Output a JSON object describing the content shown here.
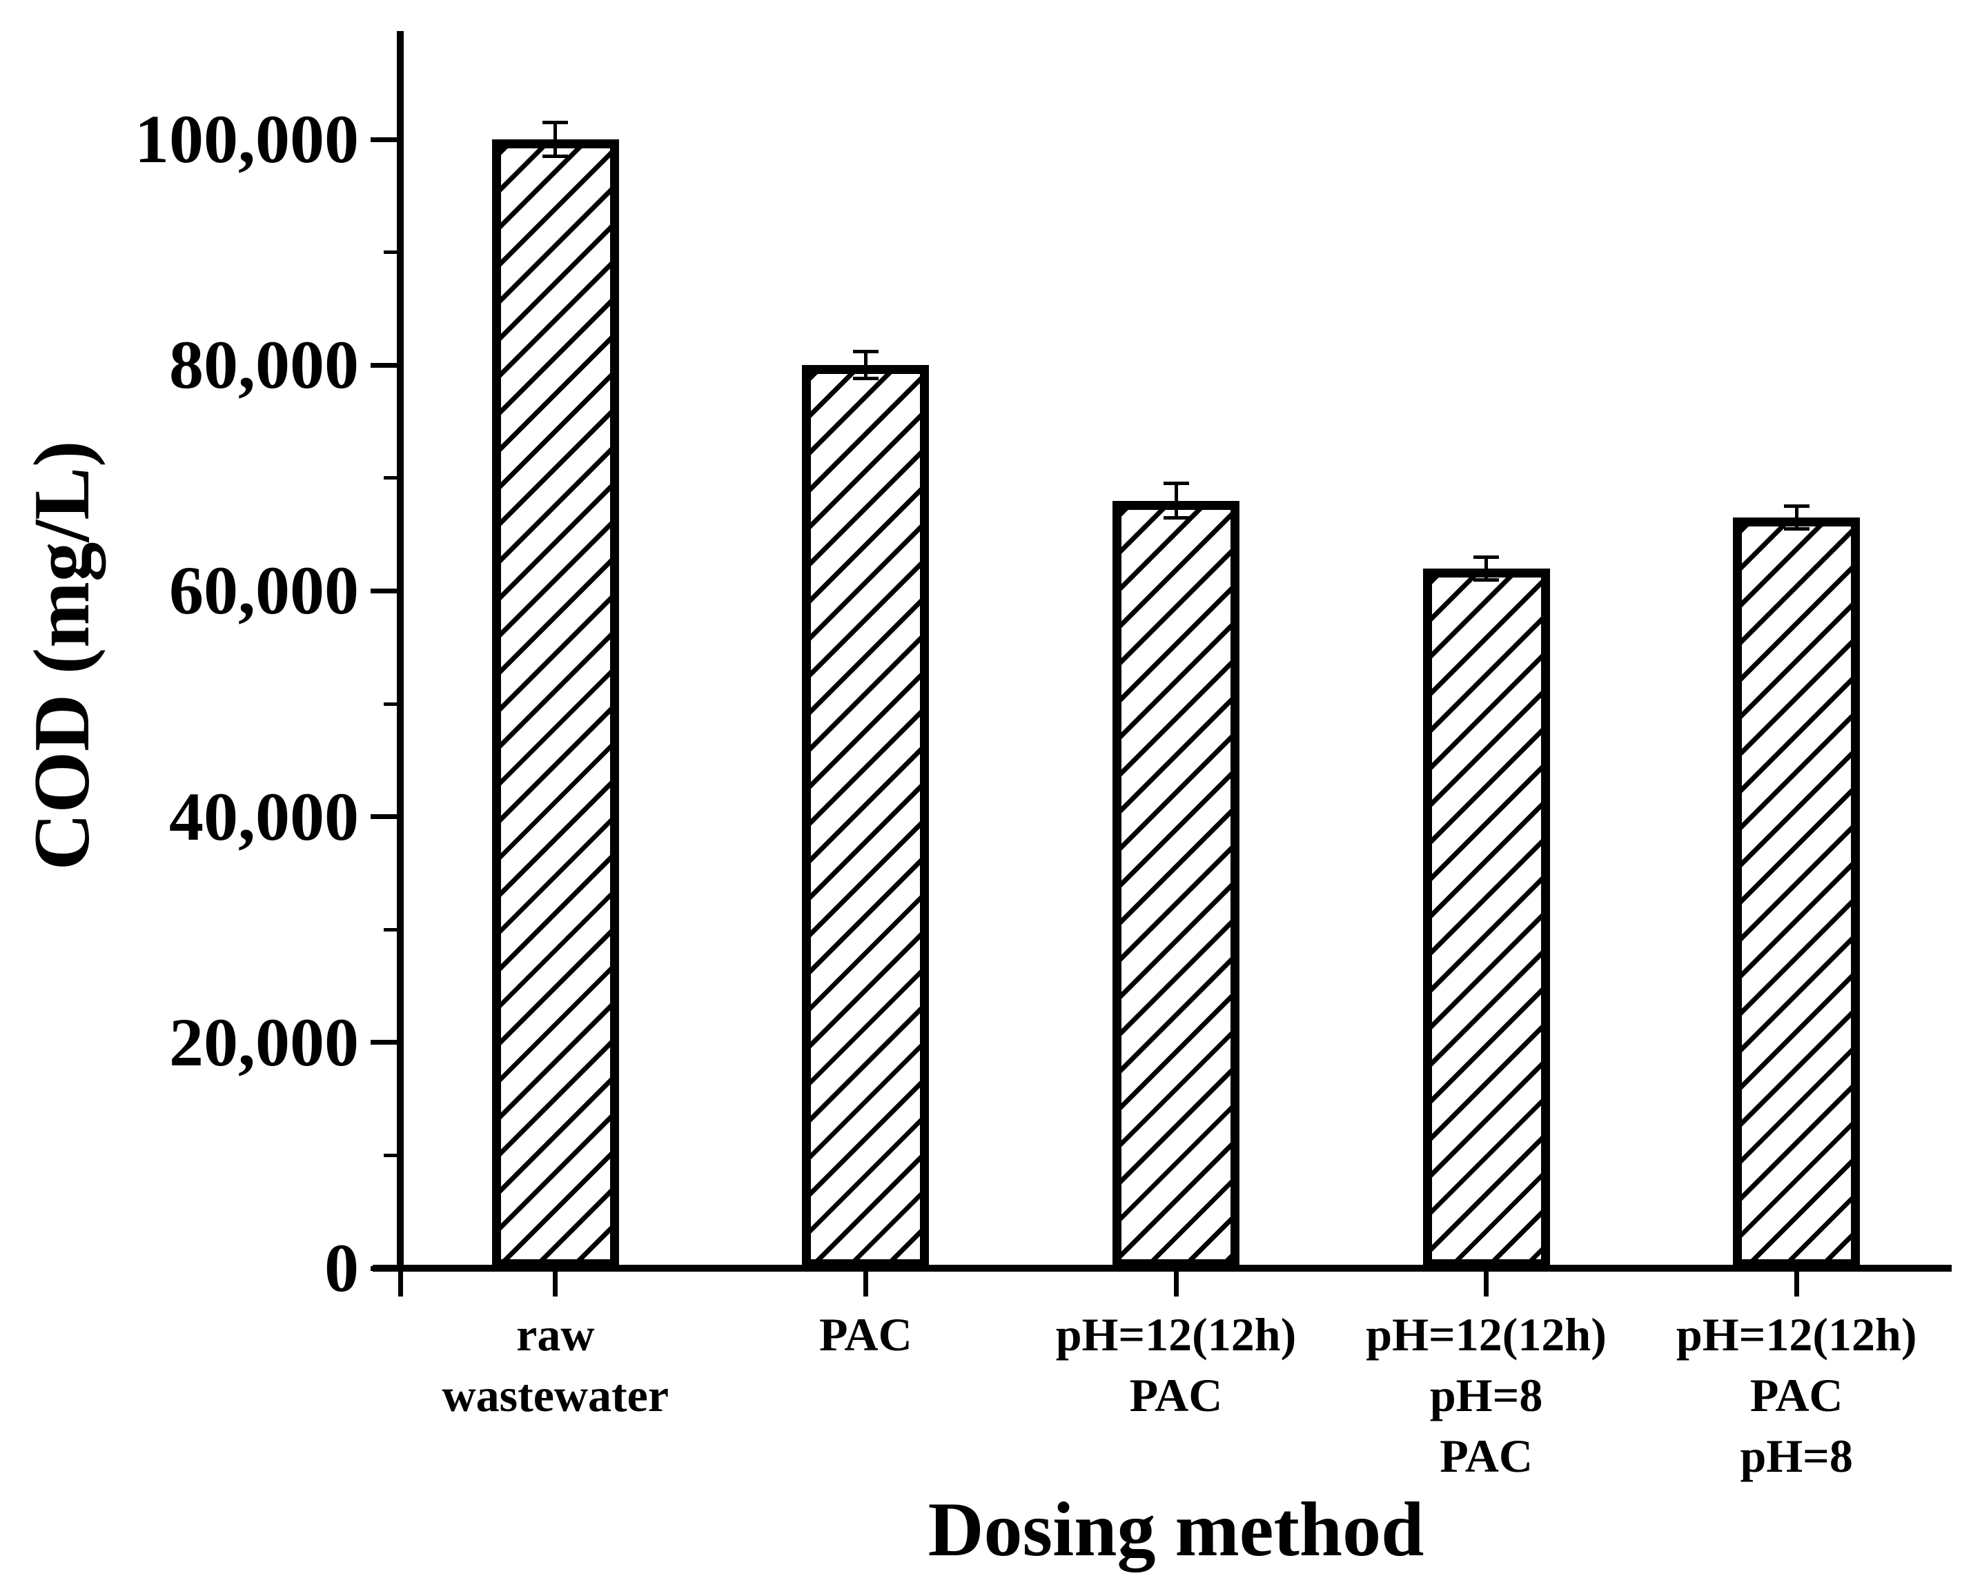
{
  "figure": {
    "background": "#ffffff",
    "ink_color": "#000000"
  },
  "chart_data": {
    "type": "bar",
    "title": "",
    "xlabel": "Dosing method",
    "ylabel": "COD (mg/L)",
    "categories": [
      [
        "raw",
        "wastewater"
      ],
      [
        "PAC"
      ],
      [
        "pH=12(12h)",
        "PAC"
      ],
      [
        "pH=12(12h)",
        "pH=8",
        "PAC"
      ],
      [
        "pH=12(12h)",
        "PAC",
        "pH=8"
      ]
    ],
    "values": [
      100000,
      80000,
      68000,
      62000,
      66500
    ],
    "errors": [
      1500,
      1200,
      1500,
      1000,
      1000
    ],
    "yticks": [
      {
        "value": 0,
        "label": "0"
      },
      {
        "value": 20000,
        "label": "20,000"
      },
      {
        "value": 40000,
        "label": "40,000"
      },
      {
        "value": 60000,
        "label": "60,000"
      },
      {
        "value": 80000,
        "label": "80,000"
      },
      {
        "value": 100000,
        "label": "100,000"
      }
    ],
    "minor_yticks": [
      10000,
      30000,
      50000,
      70000,
      90000
    ],
    "ylim": [
      0,
      110000
    ],
    "grid": false,
    "legend": null,
    "bar_style": {
      "fill": "#ffffff",
      "edge": "#000000",
      "hatch": "forward-diagonal-slash"
    },
    "error_bar_style": {
      "color": "#000000",
      "caps": true
    }
  }
}
